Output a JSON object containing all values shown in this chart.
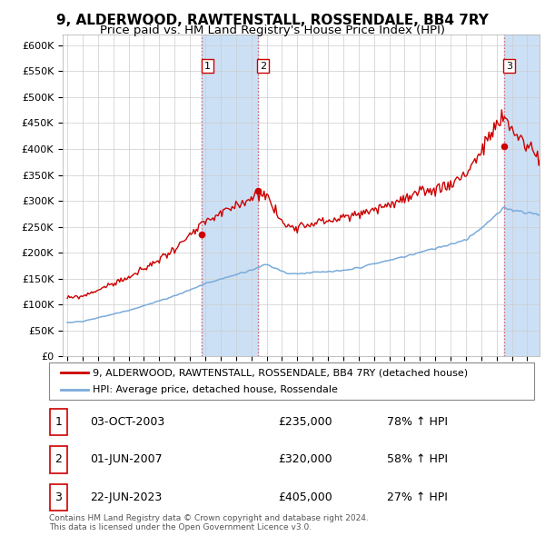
{
  "title": "9, ALDERWOOD, RAWTENSTALL, ROSSENDALE, BB4 7RY",
  "subtitle": "Price paid vs. HM Land Registry's House Price Index (HPI)",
  "ylim": [
    0,
    620000
  ],
  "yticks": [
    0,
    50000,
    100000,
    150000,
    200000,
    250000,
    300000,
    350000,
    400000,
    450000,
    500000,
    550000,
    600000
  ],
  "ytick_labels": [
    "£0",
    "£50K",
    "£100K",
    "£150K",
    "£200K",
    "£250K",
    "£300K",
    "£350K",
    "£400K",
    "£450K",
    "£500K",
    "£550K",
    "£600K"
  ],
  "xlim_min": 1994.7,
  "xlim_max": 2025.8,
  "legend_entry1": "9, ALDERWOOD, RAWTENSTALL, ROSSENDALE, BB4 7RY (detached house)",
  "legend_entry2": "HPI: Average price, detached house, Rossendale",
  "sale1_date": "03-OCT-2003",
  "sale1_price": 235000,
  "sale1_price_str": "£235,000",
  "sale1_hpi": "78% ↑ HPI",
  "sale1_x": 2003.79,
  "sale2_date": "01-JUN-2007",
  "sale2_price": 320000,
  "sale2_price_str": "£320,000",
  "sale2_hpi": "58% ↑ HPI",
  "sale2_x": 2007.42,
  "sale3_date": "22-JUN-2023",
  "sale3_price": 405000,
  "sale3_price_str": "£405,000",
  "sale3_hpi": "27% ↑ HPI",
  "sale3_x": 2023.47,
  "footnote1": "Contains HM Land Registry data © Crown copyright and database right 2024.",
  "footnote2": "This data is licensed under the Open Government Licence v3.0.",
  "hpi_color": "#7aabda",
  "price_color": "#cc0000",
  "shade_color": "#cce0f5",
  "vline_color": "#dd4444",
  "title_fontsize": 11,
  "subtitle_fontsize": 9.5
}
